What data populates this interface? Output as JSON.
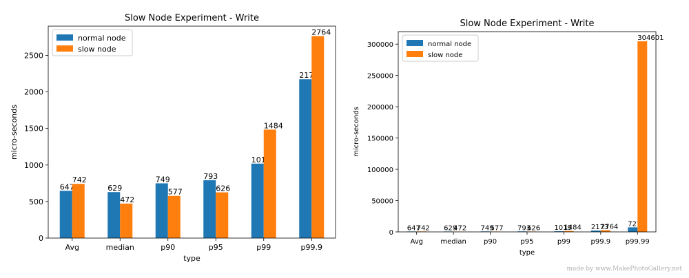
{
  "colors": {
    "normal": "#1f77b4",
    "slow": "#ff7f0e"
  },
  "watermark": "made by www.MakePhotoGallery.net",
  "chart_data": [
    {
      "type": "bar",
      "title": "Slow Node Experiment - Write",
      "xlabel": "type",
      "ylabel": "micro-seconds",
      "categories": [
        "Avg",
        "median",
        "p90",
        "p95",
        "p99",
        "p99.9"
      ],
      "series": [
        {
          "name": "normal node",
          "values": [
            647,
            629,
            749,
            793,
            1019,
            2173
          ]
        },
        {
          "name": "slow node",
          "values": [
            742,
            472,
            577,
            626,
            1484,
            2764
          ]
        }
      ],
      "ylim": [
        0,
        2900
      ],
      "yticks": [
        0,
        500,
        1000,
        1500,
        2000,
        2500
      ],
      "ytick_labels": [
        "0",
        "500",
        "1000",
        "1500",
        "2000",
        "2500"
      ],
      "legend": "top-left",
      "grid": false
    },
    {
      "type": "bar",
      "title": "Slow Node Experiment - Write",
      "xlabel": "type",
      "ylabel": "micro-seconds",
      "categories": [
        "Avg",
        "median",
        "p90",
        "p95",
        "p99",
        "p99.9",
        "p99.99"
      ],
      "series": [
        {
          "name": "normal node",
          "values": [
            647,
            629,
            749,
            793,
            1019,
            2173,
            7273
          ]
        },
        {
          "name": "slow node",
          "values": [
            742,
            472,
            577,
            626,
            1484,
            2764,
            304601
          ]
        }
      ],
      "ylim": [
        0,
        320000
      ],
      "yticks": [
        0,
        50000,
        100000,
        150000,
        200000,
        250000,
        300000
      ],
      "ytick_labels": [
        "0",
        "50000",
        "100000",
        "150000",
        "200000",
        "250000",
        "300000"
      ],
      "legend": "top-left",
      "grid": false
    }
  ]
}
